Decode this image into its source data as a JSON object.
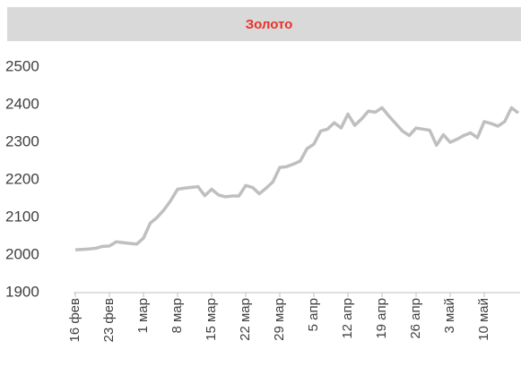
{
  "chart_data": {
    "type": "line",
    "title": "Золото",
    "categories": [
      "16 фев",
      null,
      null,
      null,
      null,
      "23 фев",
      null,
      null,
      null,
      null,
      "1 мар",
      null,
      null,
      null,
      null,
      "8 мар",
      null,
      null,
      null,
      null,
      "15 мар",
      null,
      null,
      null,
      null,
      "22 мар",
      null,
      null,
      null,
      null,
      "29 мар",
      null,
      null,
      null,
      null,
      "5 апр",
      null,
      null,
      null,
      null,
      "12 апр",
      null,
      null,
      null,
      null,
      "19 апр",
      null,
      null,
      null,
      null,
      "26 апр",
      null,
      null,
      null,
      null,
      "3 май",
      null,
      null,
      null,
      null,
      "10 май",
      null,
      null,
      null,
      null,
      null
    ],
    "values": [
      2014,
      2015,
      2016,
      2018,
      2023,
      2024,
      2035,
      2033,
      2031,
      2029,
      2045,
      2085,
      2100,
      2120,
      2145,
      2175,
      2178,
      2180,
      2182,
      2158,
      2175,
      2160,
      2155,
      2157,
      2157,
      2185,
      2180,
      2163,
      2178,
      2195,
      2233,
      2235,
      2242,
      2250,
      2283,
      2295,
      2330,
      2335,
      2352,
      2338,
      2375,
      2345,
      2362,
      2383,
      2380,
      2392,
      2370,
      2350,
      2330,
      2318,
      2338,
      2335,
      2332,
      2292,
      2320,
      2300,
      2308,
      2318,
      2325,
      2312,
      2355,
      2350,
      2343,
      2355,
      2392,
      2378
    ],
    "color": "#bfbfbf",
    "title_color": "#e8312a",
    "ylim": [
      1900,
      2500
    ],
    "yticks": [
      1900,
      2000,
      2100,
      2200,
      2300,
      2400,
      2500
    ]
  }
}
